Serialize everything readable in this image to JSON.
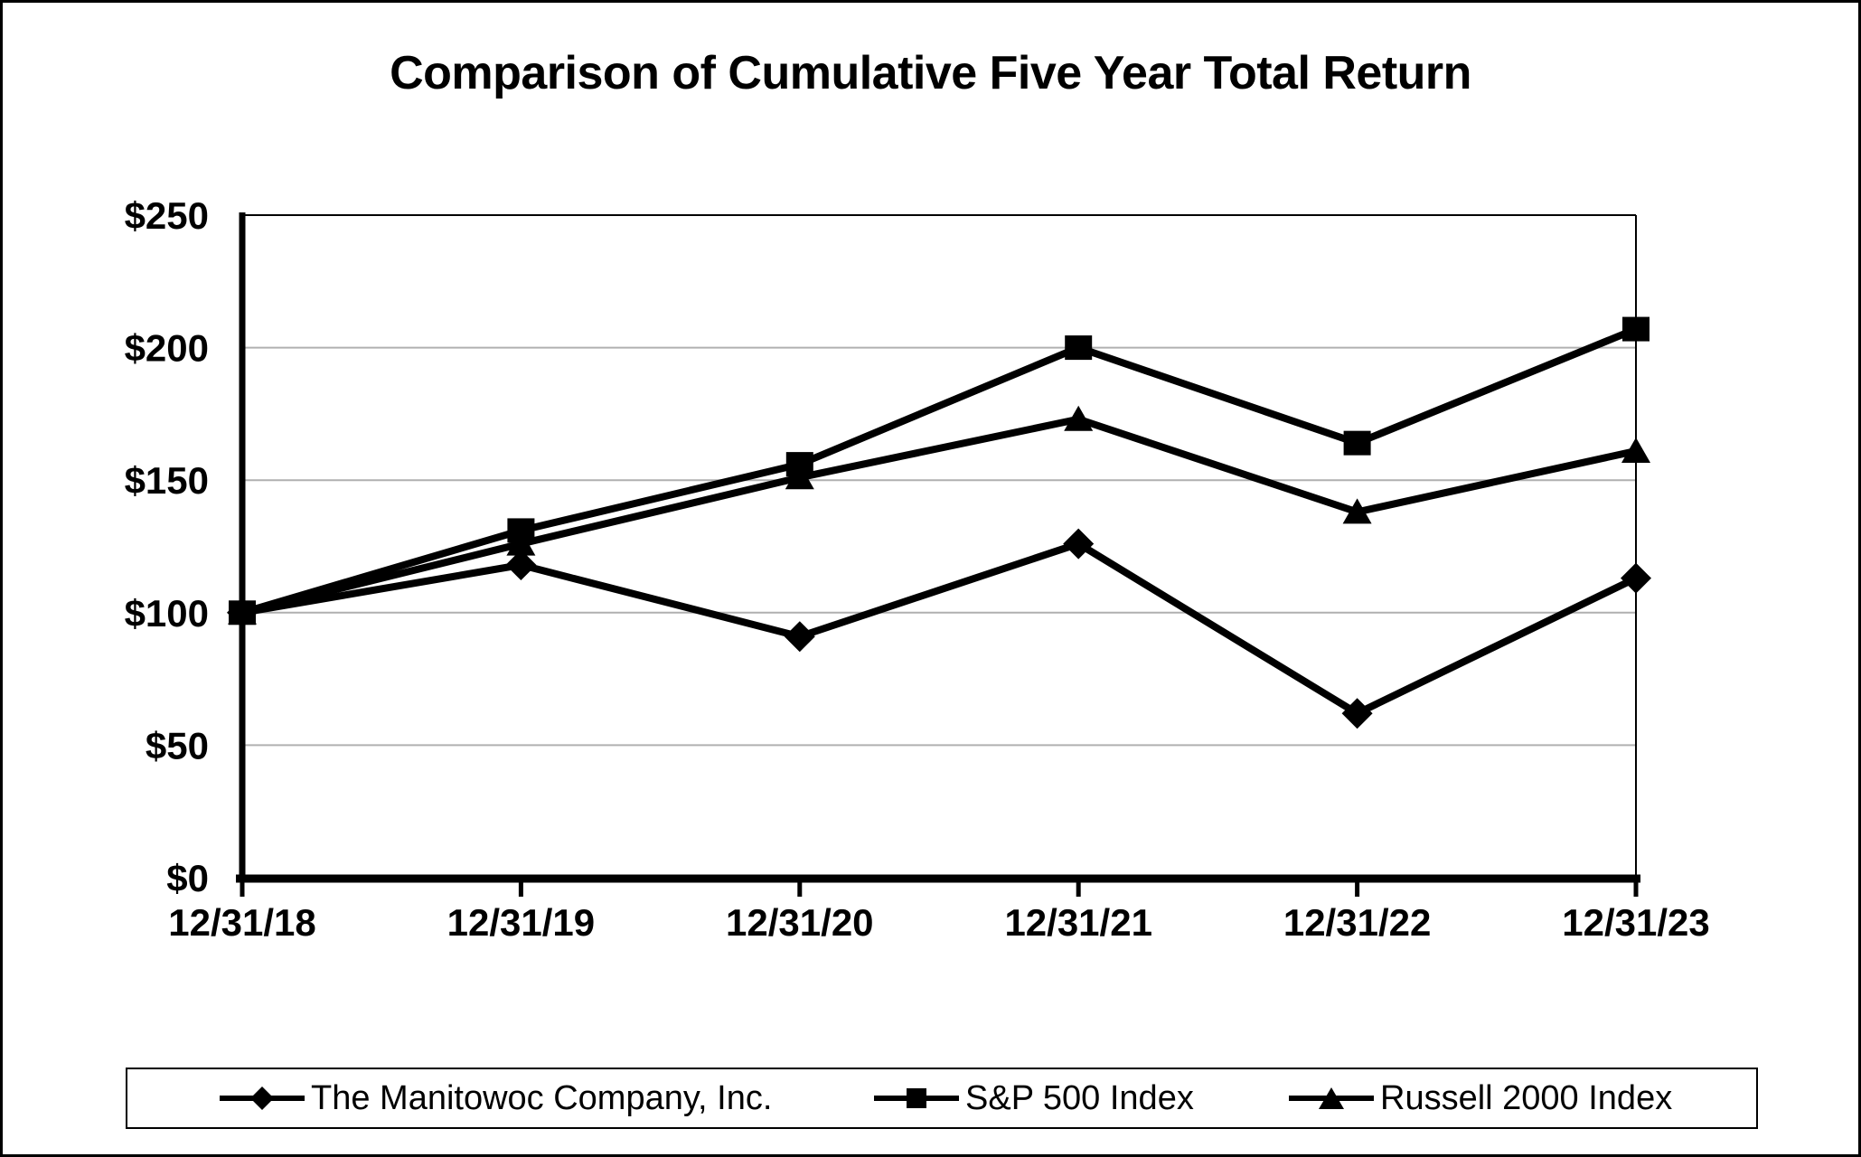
{
  "chart_data": {
    "type": "line",
    "title": "Comparison of Cumulative Five Year Total Return",
    "x_categories": [
      "12/31/18",
      "12/31/19",
      "12/31/20",
      "12/31/21",
      "12/31/22",
      "12/31/23"
    ],
    "y_ticks": [
      {
        "label": "$0",
        "value": 0
      },
      {
        "label": "$50",
        "value": 50
      },
      {
        "label": "$100",
        "value": 100
      },
      {
        "label": "$150",
        "value": 150
      },
      {
        "label": "$200",
        "value": 200
      },
      {
        "label": "$250",
        "value": 250
      }
    ],
    "ylim": [
      0,
      250
    ],
    "grid": true,
    "legend_position": "bottom",
    "series": [
      {
        "name": "The Manitowoc Company, Inc.",
        "marker": "diamond",
        "color": "#000000",
        "values": [
          100,
          118,
          91,
          126,
          62,
          113
        ]
      },
      {
        "name": "S&P 500 Index",
        "marker": "square",
        "color": "#000000",
        "values": [
          100,
          131,
          156,
          200,
          164,
          207
        ]
      },
      {
        "name": "Russell 2000 Index",
        "marker": "triangle",
        "color": "#000000",
        "values": [
          100,
          126,
          151,
          173,
          138,
          161
        ]
      }
    ],
    "colors": {
      "line": "#000000",
      "gridline": "#b0b0b0",
      "background": "#ffffff",
      "frame": "#000000"
    }
  }
}
